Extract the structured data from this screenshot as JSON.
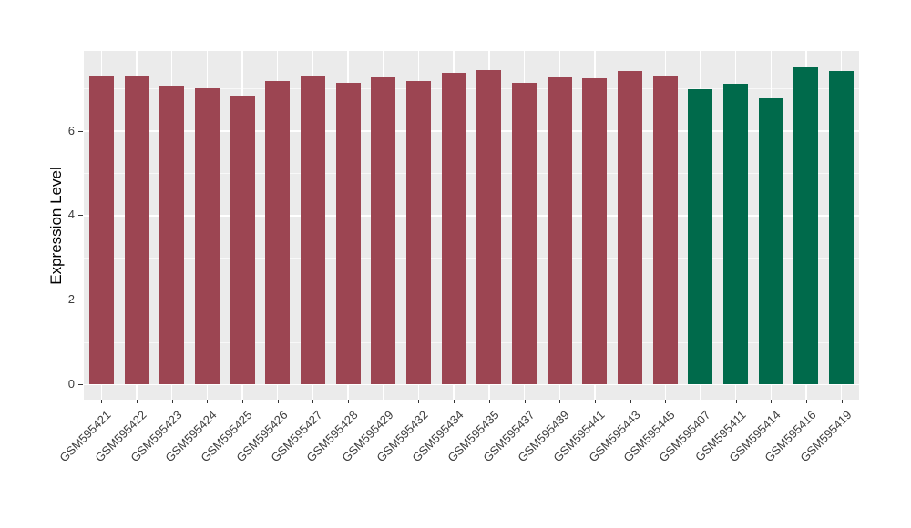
{
  "chart_data": {
    "type": "bar",
    "title": "",
    "xlabel": "",
    "ylabel": "Expression Level",
    "categories": [
      "GSM595421",
      "GSM595422",
      "GSM595423",
      "GSM595424",
      "GSM595425",
      "GSM595426",
      "GSM595427",
      "GSM595428",
      "GSM595429",
      "GSM595432",
      "GSM595434",
      "GSM595435",
      "GSM595437",
      "GSM595439",
      "GSM595441",
      "GSM595443",
      "GSM595445",
      "GSM595407",
      "GSM595411",
      "GSM595414",
      "GSM595416",
      "GSM595419"
    ],
    "values": [
      7.28,
      7.3,
      7.08,
      7.0,
      6.83,
      7.18,
      7.28,
      7.13,
      7.26,
      7.18,
      7.38,
      7.43,
      7.13,
      7.26,
      7.24,
      7.42,
      7.31,
      6.98,
      7.11,
      6.76,
      7.51,
      7.41
    ],
    "groups": [
      "group1",
      "group1",
      "group1",
      "group1",
      "group1",
      "group1",
      "group1",
      "group1",
      "group1",
      "group1",
      "group1",
      "group1",
      "group1",
      "group1",
      "group1",
      "group1",
      "group1",
      "group2",
      "group2",
      "group2",
      "group2",
      "group2"
    ],
    "group_colors": {
      "group1": "#9c4552",
      "group2": "#006a4b"
    },
    "yticks": [
      0,
      2,
      4,
      6
    ],
    "minor_gridlines": [
      1,
      3,
      5,
      7
    ],
    "ylim": [
      -0.37,
      7.88
    ],
    "grid": true,
    "legend_position": "none",
    "x_tick_rotation_deg": 45,
    "panel_background": "#ebebeb",
    "gridline_color": "#ffffff",
    "axis_text_color": "#3d3d3d",
    "axis_title_color": "#000000"
  }
}
